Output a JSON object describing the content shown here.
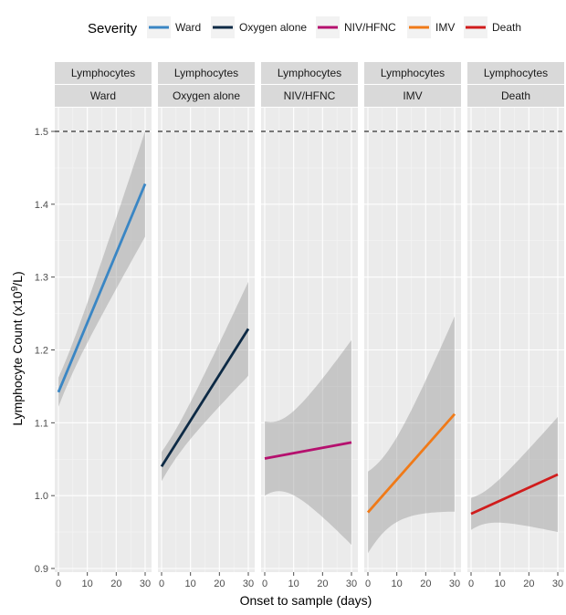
{
  "chart_data": {
    "type": "line",
    "legend": {
      "title": "Severity",
      "position": "top",
      "entries": [
        {
          "label": "Ward",
          "color": "#3a86c4"
        },
        {
          "label": "Oxygen alone",
          "color": "#0d2a45"
        },
        {
          "label": "NIV/HFNC",
          "color": "#b5106e"
        },
        {
          "label": "IMV",
          "color": "#f07a18"
        },
        {
          "label": "Death",
          "color": "#d01c1c"
        }
      ]
    },
    "xlabel": "Onset to sample (days)",
    "ylabel_parts": [
      "Lymphocyte Count (x10",
      "9",
      "/L)"
    ],
    "xlim": [
      0,
      30
    ],
    "ylim": [
      0.9,
      1.5
    ],
    "x_ticks": [
      0,
      10,
      20,
      30
    ],
    "y_ticks": [
      "0.9",
      "1.0",
      "1.1",
      "1.2",
      "1.3",
      "1.4",
      "1.5"
    ],
    "reference_line": {
      "y": 1.5,
      "style": "dashed"
    },
    "grid": true,
    "panels": [
      {
        "strip_top": "Lymphocytes",
        "strip_bottom": "Ward",
        "color": "#3a86c4",
        "x": [
          0,
          30
        ],
        "y": [
          1.142,
          1.428
        ],
        "ci_lower": [
          1.122,
          1.355
        ],
        "ci_upper": [
          1.162,
          1.5
        ]
      },
      {
        "strip_top": "Lymphocytes",
        "strip_bottom": "Oxygen alone",
        "color": "#0d2a45",
        "x": [
          0,
          30
        ],
        "y": [
          1.04,
          1.229
        ],
        "ci_lower": [
          1.02,
          1.166
        ],
        "ci_upper": [
          1.06,
          1.295
        ]
      },
      {
        "strip_top": "Lymphocytes",
        "strip_bottom": "NIV/HFNC",
        "color": "#b5106e",
        "x": [
          0,
          30
        ],
        "y": [
          1.051,
          1.073
        ],
        "ci_lower": [
          1.0,
          0.932
        ],
        "ci_upper": [
          1.102,
          1.213
        ]
      },
      {
        "strip_top": "Lymphocytes",
        "strip_bottom": "IMV",
        "color": "#f07a18",
        "x": [
          0,
          30
        ],
        "y": [
          0.977,
          1.112
        ],
        "ci_lower": [
          0.921,
          0.978
        ],
        "ci_upper": [
          1.033,
          1.246
        ]
      },
      {
        "strip_top": "Lymphocytes",
        "strip_bottom": "Death",
        "color": "#d01c1c",
        "x": [
          0,
          30
        ],
        "y": [
          0.975,
          1.029
        ],
        "ci_lower": [
          0.953,
          0.95
        ],
        "ci_upper": [
          0.997,
          1.108
        ]
      }
    ]
  }
}
